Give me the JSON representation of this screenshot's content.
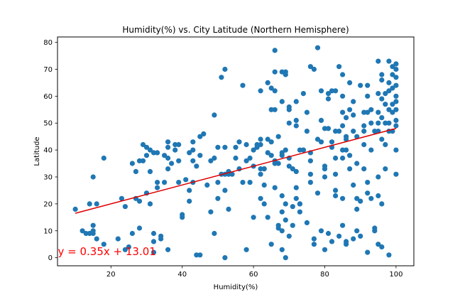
{
  "chart_data": {
    "type": "scatter",
    "title": "Humidity(%) vs. City Latitude (Northern Hemisphere)",
    "xlabel": "Humidity(%)",
    "ylabel": "Latitude",
    "xlim": [
      5,
      105
    ],
    "ylim": [
      -3,
      82
    ],
    "xticks": [
      20,
      40,
      60,
      80,
      100
    ],
    "yticks": [
      0,
      10,
      20,
      30,
      40,
      50,
      60,
      70,
      80
    ],
    "grid": false,
    "marker_color": "#1f77b4",
    "line_color": "#e00000",
    "regression": {
      "slope": 0.35,
      "intercept": 13.01,
      "x_range": [
        10,
        100
      ]
    },
    "annotation": {
      "text": "y = 0.35x + 13.01",
      "x": 5.5,
      "y": 1,
      "color": "#ff0000"
    },
    "points": [
      [
        10,
        18
      ],
      [
        12,
        10
      ],
      [
        13,
        9
      ],
      [
        14,
        20
      ],
      [
        14,
        9
      ],
      [
        15,
        12
      ],
      [
        15,
        30
      ],
      [
        15,
        10
      ],
      [
        15,
        9
      ],
      [
        16,
        20
      ],
      [
        16,
        7
      ],
      [
        18,
        37
      ],
      [
        18,
        5
      ],
      [
        22,
        7
      ],
      [
        23,
        22
      ],
      [
        24,
        19
      ],
      [
        24,
        3
      ],
      [
        25,
        4
      ],
      [
        26,
        35
      ],
      [
        26,
        9
      ],
      [
        27,
        22
      ],
      [
        27,
        32
      ],
      [
        28,
        36
      ],
      [
        28,
        21
      ],
      [
        28,
        11
      ],
      [
        29,
        36
      ],
      [
        29,
        42
      ],
      [
        30,
        38
      ],
      [
        30,
        24
      ],
      [
        30,
        41
      ],
      [
        31,
        40
      ],
      [
        31,
        32
      ],
      [
        31,
        20
      ],
      [
        32,
        39
      ],
      [
        32,
        9
      ],
      [
        32,
        6
      ],
      [
        32,
        2
      ],
      [
        33,
        26
      ],
      [
        33,
        39
      ],
      [
        33,
        28
      ],
      [
        34,
        8
      ],
      [
        34,
        7
      ],
      [
        35,
        38
      ],
      [
        35,
        28
      ],
      [
        36,
        37
      ],
      [
        36,
        33
      ],
      [
        36,
        41
      ],
      [
        36,
        43
      ],
      [
        36,
        3
      ],
      [
        37,
        35
      ],
      [
        38,
        42
      ],
      [
        38,
        40
      ],
      [
        39,
        36
      ],
      [
        39,
        28
      ],
      [
        39,
        42
      ],
      [
        40,
        16
      ],
      [
        40,
        15
      ],
      [
        41,
        29
      ],
      [
        42,
        25
      ],
      [
        42,
        39
      ],
      [
        42,
        21
      ],
      [
        43,
        36
      ],
      [
        43,
        43
      ],
      [
        43,
        40
      ],
      [
        43,
        28
      ],
      [
        44,
        34
      ],
      [
        44,
        1
      ],
      [
        45,
        45
      ],
      [
        45,
        38
      ],
      [
        45,
        1
      ],
      [
        46,
        46
      ],
      [
        47,
        27
      ],
      [
        48,
        36
      ],
      [
        48,
        17
      ],
      [
        49,
        37
      ],
      [
        49,
        9
      ],
      [
        49,
        53
      ],
      [
        50,
        28
      ],
      [
        50,
        41
      ],
      [
        50,
        22
      ],
      [
        51,
        67
      ],
      [
        51,
        31
      ],
      [
        52,
        0
      ],
      [
        52,
        41
      ],
      [
        52,
        31
      ],
      [
        52,
        25
      ],
      [
        52,
        70
      ],
      [
        53,
        18
      ],
      [
        53,
        32
      ],
      [
        53,
        31
      ],
      [
        54,
        31
      ],
      [
        55,
        37
      ],
      [
        55,
        41
      ],
      [
        56,
        43
      ],
      [
        56,
        33
      ],
      [
        57,
        64
      ],
      [
        57,
        28
      ],
      [
        58,
        42
      ],
      [
        58,
        3
      ],
      [
        58,
        36
      ],
      [
        59,
        37
      ],
      [
        59,
        28
      ],
      [
        60,
        40
      ],
      [
        60,
        15
      ],
      [
        60,
        34
      ],
      [
        61,
        42
      ],
      [
        61,
        41
      ],
      [
        62,
        22
      ],
      [
        62,
        31
      ],
      [
        62,
        42
      ],
      [
        62,
        44
      ],
      [
        62,
        33
      ],
      [
        62,
        62
      ],
      [
        63,
        33
      ],
      [
        63,
        33
      ],
      [
        63,
        27
      ],
      [
        63,
        20
      ],
      [
        64,
        44
      ],
      [
        64,
        39
      ],
      [
        64,
        65
      ],
      [
        64,
        15
      ],
      [
        65,
        43
      ],
      [
        65,
        63
      ],
      [
        65,
        38
      ],
      [
        65,
        5
      ],
      [
        65,
        55
      ],
      [
        66,
        77
      ],
      [
        66,
        35
      ],
      [
        66,
        69
      ],
      [
        66,
        62
      ],
      [
        66,
        55
      ],
      [
        66,
        36
      ],
      [
        66,
        26
      ],
      [
        67,
        35
      ],
      [
        67,
        45
      ],
      [
        67,
        12
      ],
      [
        67,
        11
      ],
      [
        68,
        69
      ],
      [
        68,
        58
      ],
      [
        68,
        39
      ],
      [
        68,
        38
      ],
      [
        68,
        23
      ],
      [
        68,
        17
      ],
      [
        68,
        10
      ],
      [
        68,
        3
      ],
      [
        69,
        40
      ],
      [
        69,
        68
      ],
      [
        69,
        69
      ],
      [
        69,
        14
      ],
      [
        69,
        20
      ],
      [
        69,
        0
      ],
      [
        70,
        56
      ],
      [
        70,
        34
      ],
      [
        70,
        55
      ],
      [
        70,
        50
      ],
      [
        70,
        8
      ],
      [
        70,
        37
      ],
      [
        71,
        33
      ],
      [
        71,
        12
      ],
      [
        71,
        19
      ],
      [
        72,
        51
      ],
      [
        72,
        58
      ],
      [
        72,
        49
      ],
      [
        72,
        32
      ],
      [
        72,
        26
      ],
      [
        72,
        22
      ],
      [
        73,
        40
      ],
      [
        73,
        17
      ],
      [
        73,
        20
      ],
      [
        73,
        20
      ],
      [
        74,
        61
      ],
      [
        74,
        40
      ],
      [
        74,
        40
      ],
      [
        75,
        54
      ],
      [
        75,
        47
      ],
      [
        75,
        13
      ],
      [
        76,
        71
      ],
      [
        76,
        39
      ],
      [
        76,
        36
      ],
      [
        76,
        31
      ],
      [
        76,
        28
      ],
      [
        77,
        70
      ],
      [
        77,
        5
      ],
      [
        77,
        7
      ],
      [
        78,
        44
      ],
      [
        78,
        24
      ],
      [
        78,
        78
      ],
      [
        79,
        62
      ],
      [
        79,
        51
      ],
      [
        79,
        43
      ],
      [
        79,
        10
      ],
      [
        80,
        48
      ],
      [
        80,
        34
      ],
      [
        80,
        33
      ],
      [
        80,
        30
      ],
      [
        80,
        3
      ],
      [
        81,
        61
      ],
      [
        81,
        59
      ],
      [
        81,
        48
      ],
      [
        81,
        9
      ],
      [
        82,
        62
      ],
      [
        82,
        43
      ],
      [
        82,
        41
      ],
      [
        82,
        6
      ],
      [
        83,
        62
      ],
      [
        83,
        47
      ],
      [
        83,
        37
      ],
      [
        83,
        31
      ],
      [
        83,
        25
      ],
      [
        83,
        23
      ],
      [
        84,
        71
      ],
      [
        84,
        47
      ],
      [
        84,
        8
      ],
      [
        85,
        68
      ],
      [
        85,
        60
      ],
      [
        85,
        54
      ],
      [
        85,
        49
      ],
      [
        85,
        40
      ],
      [
        85,
        37
      ],
      [
        85,
        22
      ],
      [
        85,
        12
      ],
      [
        86,
        52
      ],
      [
        86,
        45
      ],
      [
        86,
        44
      ],
      [
        86,
        40
      ],
      [
        86,
        6
      ],
      [
        86,
        5
      ],
      [
        87,
        65
      ],
      [
        87,
        55
      ],
      [
        87,
        38
      ],
      [
        87,
        33
      ],
      [
        88,
        58
      ],
      [
        88,
        53
      ],
      [
        88,
        47
      ],
      [
        88,
        27
      ],
      [
        88,
        7
      ],
      [
        89,
        45
      ],
      [
        89,
        35
      ],
      [
        89,
        22
      ],
      [
        89,
        18
      ],
      [
        89,
        10
      ],
      [
        90,
        64
      ],
      [
        90,
        21
      ],
      [
        90,
        8
      ],
      [
        91,
        54
      ],
      [
        91,
        49
      ],
      [
        91,
        47
      ],
      [
        91,
        42
      ],
      [
        91,
        33
      ],
      [
        92,
        64
      ],
      [
        92,
        60
      ],
      [
        92,
        54
      ],
      [
        92,
        28
      ],
      [
        92,
        24
      ],
      [
        92,
        2
      ],
      [
        93,
        55
      ],
      [
        93,
        50
      ],
      [
        93,
        40
      ],
      [
        93,
        22
      ],
      [
        94,
        47
      ],
      [
        94,
        11
      ],
      [
        94,
        10
      ],
      [
        95,
        73
      ],
      [
        95,
        61
      ],
      [
        95,
        54
      ],
      [
        95,
        50
      ],
      [
        95,
        47
      ],
      [
        95,
        30
      ],
      [
        95,
        23
      ],
      [
        95,
        5
      ],
      [
        96,
        68
      ],
      [
        96,
        66
      ],
      [
        96,
        59
      ],
      [
        96,
        52
      ],
      [
        96,
        44
      ],
      [
        96,
        20
      ],
      [
        96,
        4
      ],
      [
        97,
        61
      ],
      [
        97,
        57
      ],
      [
        97,
        50
      ],
      [
        97,
        42
      ],
      [
        97,
        33
      ],
      [
        98,
        73
      ],
      [
        98,
        65
      ],
      [
        98,
        62
      ],
      [
        98,
        55
      ],
      [
        98,
        50
      ],
      [
        98,
        47
      ],
      [
        98,
        1
      ],
      [
        99,
        71
      ],
      [
        99,
        68
      ],
      [
        99,
        63
      ],
      [
        99,
        57
      ],
      [
        99,
        54
      ],
      [
        99,
        47
      ],
      [
        100,
        72
      ],
      [
        100,
        70
      ],
      [
        100,
        67
      ],
      [
        100,
        64
      ],
      [
        100,
        60
      ],
      [
        100,
        58
      ],
      [
        100,
        55
      ],
      [
        100,
        51
      ],
      [
        100,
        49
      ],
      [
        100,
        40
      ],
      [
        100,
        31
      ]
    ]
  }
}
